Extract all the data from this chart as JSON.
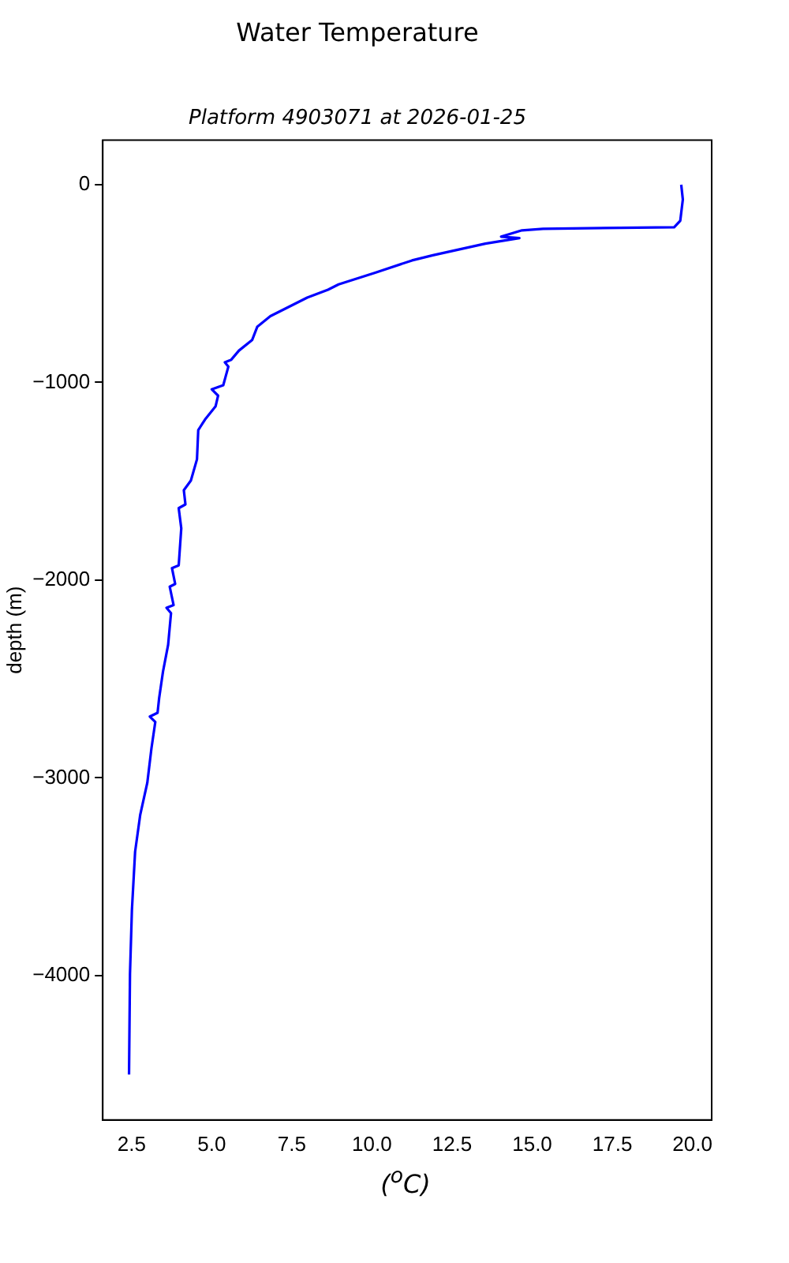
{
  "chart_data": {
    "type": "line",
    "title": "Water Temperature",
    "subtitle": "Platform 4903071 at 2026-01-25",
    "xlabel": "($^{o}$C)",
    "ylabel": "depth (m)",
    "series": [
      {
        "color": "#0000ff",
        "x": [
          19.65,
          19.7,
          19.62,
          19.43,
          15.34,
          14.68,
          14.03,
          14.6,
          13.54,
          11.9,
          11.25,
          10.1,
          8.96,
          8.63,
          7.98,
          7.32,
          6.83,
          6.42,
          6.26,
          5.85,
          5.61,
          5.41,
          5.52,
          5.36,
          5.0,
          5.2,
          5.12,
          4.79,
          4.58,
          4.54,
          4.35,
          4.13,
          4.18,
          3.97,
          4.05,
          3.97,
          3.76,
          3.86,
          3.69,
          3.81,
          3.59,
          3.73,
          3.64,
          3.48,
          3.36,
          3.31,
          3.07,
          3.24,
          3.12,
          2.99,
          2.77,
          2.61,
          2.51,
          2.45,
          2.42
        ],
        "values": [
          0,
          -75,
          -182,
          -215,
          -223,
          -231,
          -263,
          -270,
          -298,
          -357,
          -383,
          -445,
          -504,
          -531,
          -571,
          -625,
          -665,
          -719,
          -786,
          -839,
          -885,
          -898,
          -920,
          -1014,
          -1035,
          -1067,
          -1121,
          -1188,
          -1241,
          -1389,
          -1496,
          -1545,
          -1617,
          -1636,
          -1738,
          -1925,
          -1939,
          -2019,
          -2033,
          -2126,
          -2140,
          -2167,
          -2327,
          -2462,
          -2596,
          -2671,
          -2690,
          -2717,
          -2850,
          -3025,
          -3186,
          -3373,
          -3668,
          -3990,
          -4500
        ]
      }
    ],
    "xlim": [
      1.6,
      20.6
    ],
    "ylim": [
      -4730,
      225
    ],
    "xticks": [
      {
        "value": 2.5,
        "label": "2.5"
      },
      {
        "value": 5,
        "label": "5.0"
      },
      {
        "value": 7.5,
        "label": "7.5"
      },
      {
        "value": 10,
        "label": "10.0"
      },
      {
        "value": 12.5,
        "label": "12.5"
      },
      {
        "value": 15,
        "label": "15.0"
      },
      {
        "value": 17.5,
        "label": "17.5"
      },
      {
        "value": 20,
        "label": "20.0"
      }
    ],
    "yticks": [
      -4000,
      -3000,
      -2000,
      -1000,
      0
    ],
    "grid": false,
    "legend": false,
    "marker": "none",
    "line_style": "solid"
  }
}
